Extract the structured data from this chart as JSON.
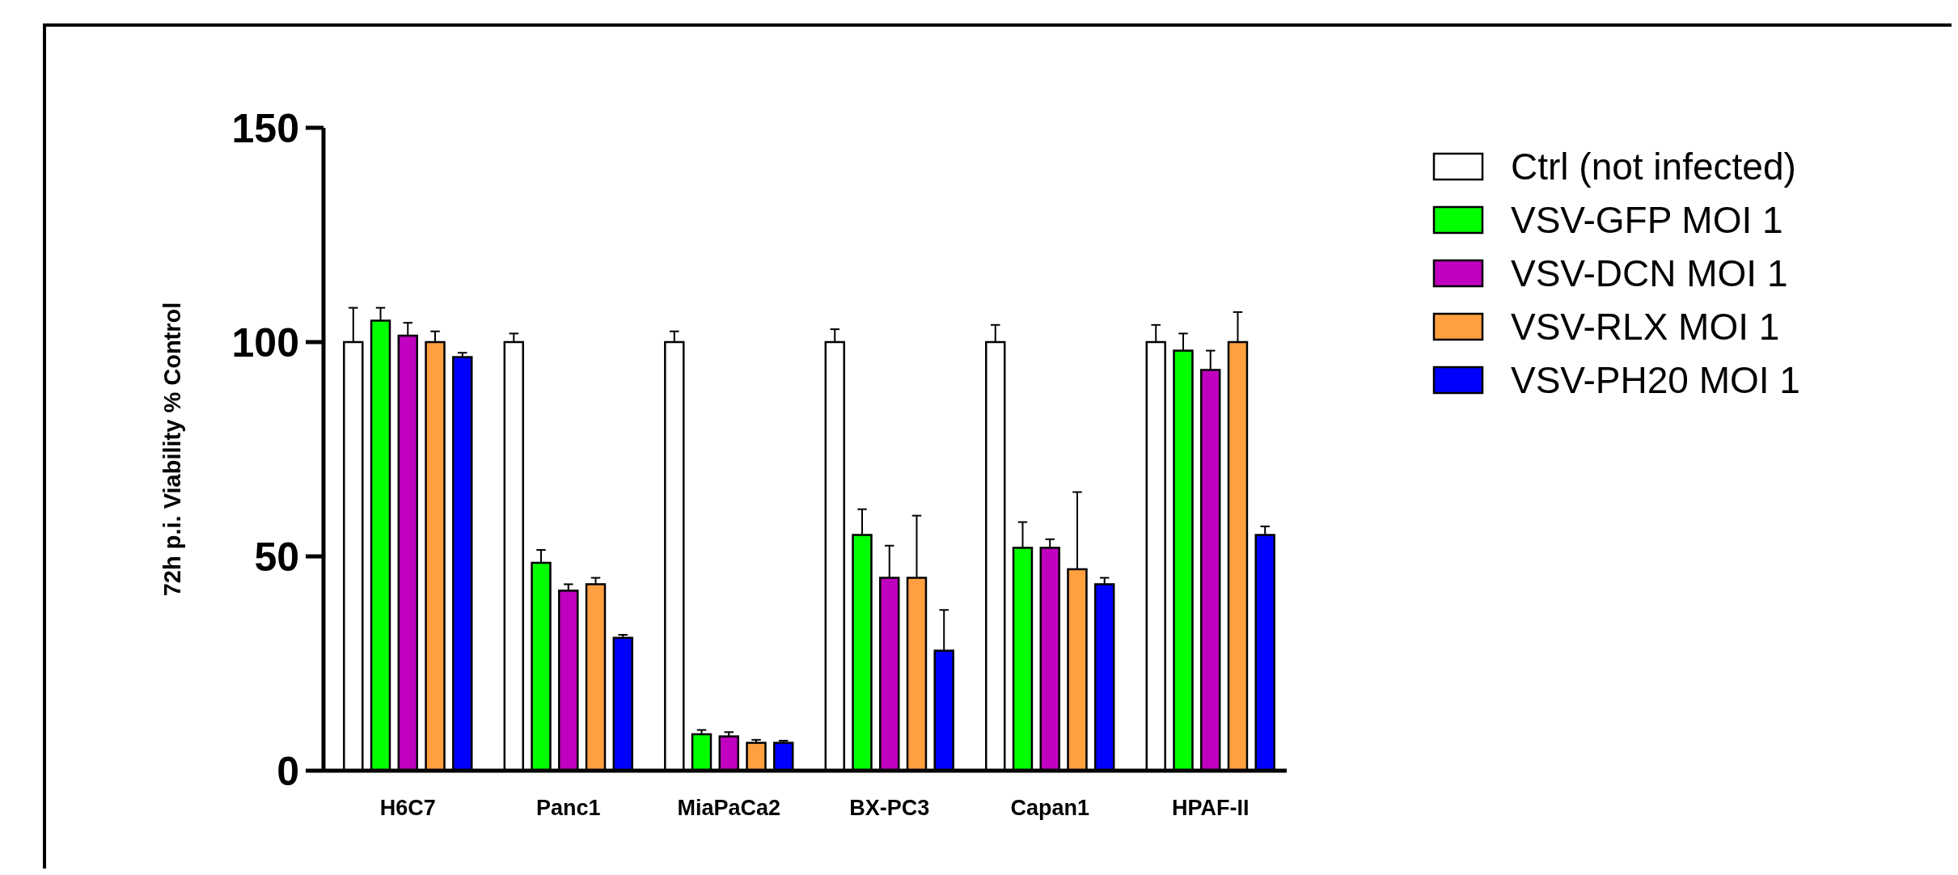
{
  "chart_data": {
    "type": "bar",
    "ylabel": "72h p.i. Viability % Control",
    "categories": [
      "H6C7",
      "Panc1",
      "MiaPaCa2",
      "BX-PC3",
      "Capan1",
      "HPAF-II"
    ],
    "series": [
      {
        "name": "Ctrl (not infected)",
        "color": "#ffffff",
        "values": [
          100,
          100,
          100,
          100,
          100,
          100
        ],
        "errors": [
          8,
          2,
          2.5,
          3,
          4,
          4
        ]
      },
      {
        "name": "VSV-GFP MOI 1",
        "color": "#00ff00",
        "values": [
          105,
          48.5,
          8.5,
          55,
          52,
          98
        ],
        "errors": [
          3,
          3,
          1,
          6,
          6,
          4
        ]
      },
      {
        "name": "VSV-DCN MOI 1",
        "color": "#bf00bf",
        "values": [
          101.5,
          42,
          8,
          45,
          52,
          93.5
        ],
        "errors": [
          3,
          1.5,
          1,
          7.5,
          2,
          4.5
        ]
      },
      {
        "name": "VSV-RLX MOI 1",
        "color": "#ffa040",
        "values": [
          100,
          43.5,
          6.5,
          45,
          47,
          100
        ],
        "errors": [
          2.5,
          1.5,
          0.7,
          14.5,
          18,
          7
        ]
      },
      {
        "name": "VSV-PH20 MOI 1",
        "color": "#0000ff",
        "values": [
          96.5,
          31,
          6.5,
          28,
          43.5,
          55
        ],
        "errors": [
          1,
          0.7,
          0.5,
          9.5,
          1.5,
          2
        ]
      }
    ],
    "ylim": [
      0,
      150
    ],
    "yticks": [
      0,
      50,
      100,
      150
    ],
    "grid": false,
    "legend": "right"
  }
}
